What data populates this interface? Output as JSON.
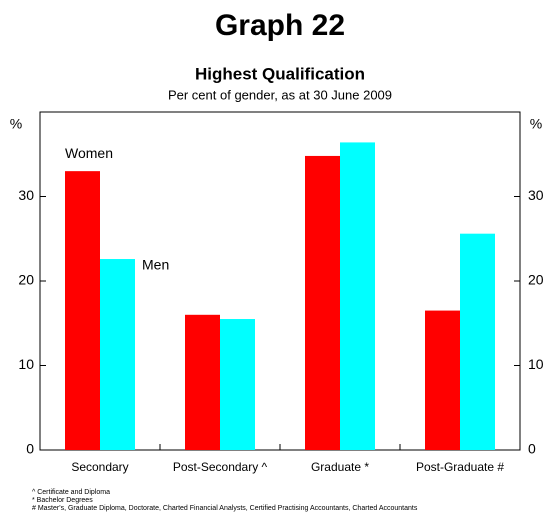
{
  "chart_data": {
    "type": "bar",
    "title": "Graph 22",
    "subtitle": "Highest Qualification",
    "caption": "Per cent of gender, as at 30 June 2009",
    "y_label": "%",
    "y2_label": "%",
    "categories": [
      "Secondary",
      "Post-Secondary ^",
      "Graduate *",
      "Post-Graduate #"
    ],
    "series": [
      {
        "name": "Women",
        "color": "#ff0000",
        "values": [
          33,
          16,
          34.8,
          16.5
        ]
      },
      {
        "name": "Men",
        "color": "#00ffff",
        "values": [
          22.6,
          15.5,
          36.4,
          25.6
        ]
      }
    ],
    "ylim": [
      0,
      40
    ],
    "yticks": [
      0,
      10,
      20,
      30
    ],
    "footnotes": [
      "^ Certificate and Diploma",
      "* Bachelor Degrees",
      "# Master's, Graduate Diploma, Doctorate, Charted Financial Analysts, Certified Practising Accountants, Charted Accountants"
    ]
  }
}
